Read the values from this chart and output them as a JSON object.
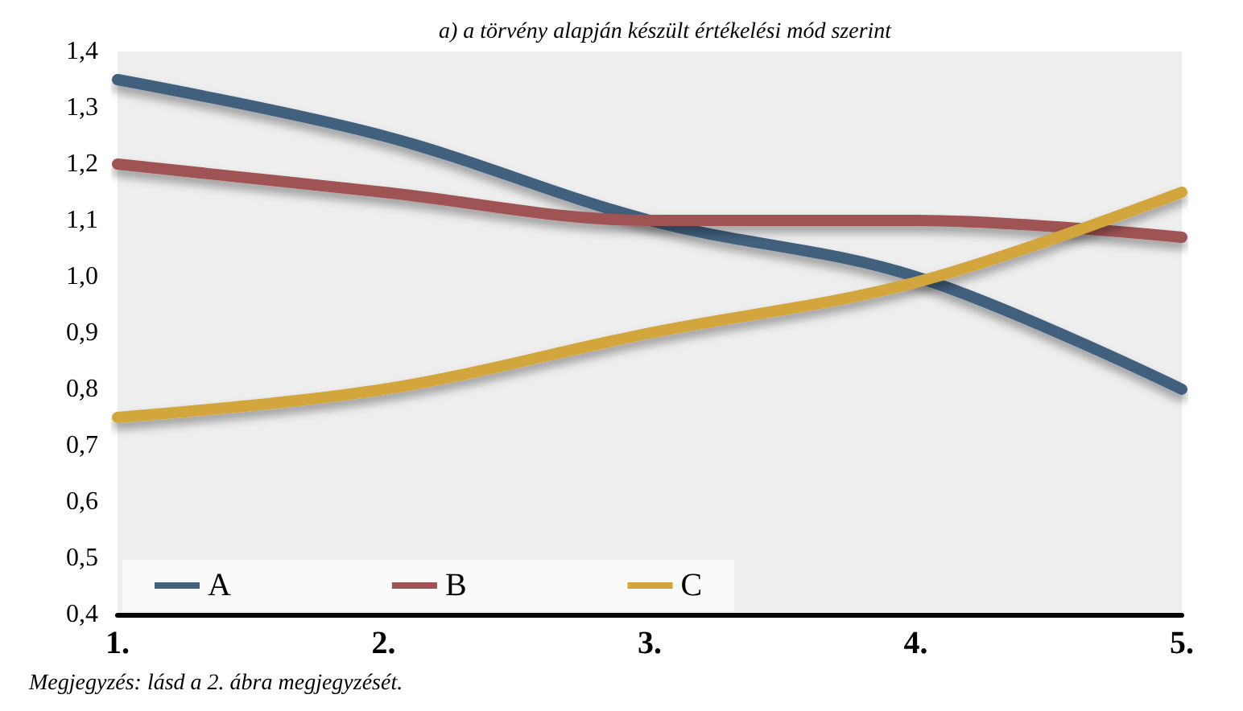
{
  "chart_data": {
    "type": "line",
    "title": "a) a törvény alapján készült értékelési mód szerint",
    "annotations": [
      "Megjegyzés: lásd a 2. ábra megjegyzését."
    ],
    "categories": [
      "1.",
      "2.",
      "3.",
      "4.",
      "5."
    ],
    "series": [
      {
        "name": "A",
        "color": "#41607e",
        "values": [
          1.35,
          1.25,
          1.1,
          1.0,
          0.8
        ]
      },
      {
        "name": "B",
        "color": "#a05252",
        "values": [
          1.2,
          1.15,
          1.1,
          1.1,
          1.07
        ]
      },
      {
        "name": "C",
        "color": "#d3a63c",
        "values": [
          0.75,
          0.8,
          0.9,
          0.99,
          1.15
        ]
      }
    ],
    "ylim": [
      0.4,
      1.4
    ],
    "yticks": [
      {
        "value": 0.4,
        "label": "0,4"
      },
      {
        "value": 0.5,
        "label": "0,5"
      },
      {
        "value": 0.6,
        "label": "0,6"
      },
      {
        "value": 0.7,
        "label": "0,7"
      },
      {
        "value": 0.8,
        "label": "0,8"
      },
      {
        "value": 0.9,
        "label": "0,9"
      },
      {
        "value": 1.0,
        "label": "1,0"
      },
      {
        "value": 1.1,
        "label": "1,1"
      },
      {
        "value": 1.2,
        "label": "1,2"
      },
      {
        "value": 1.3,
        "label": "1,3"
      },
      {
        "value": 1.4,
        "label": "1,4"
      }
    ],
    "grid": false,
    "legend": "bottom left",
    "marker": "none",
    "line_style": "solid"
  }
}
